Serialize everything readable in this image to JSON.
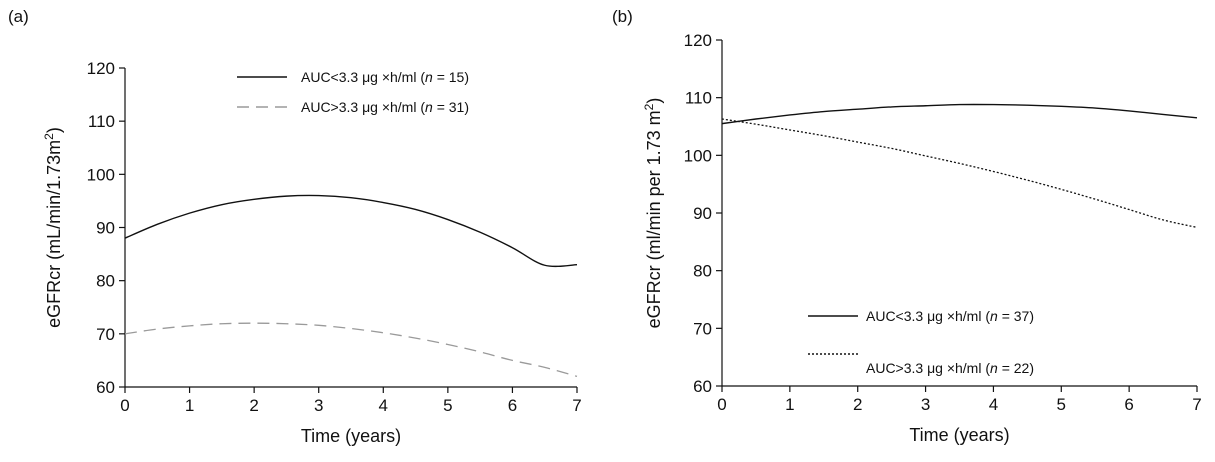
{
  "chart_data": [
    {
      "panel_label": "(a)",
      "type": "line",
      "xlabel": "Time (years)",
      "ylabel_main": "eGFRcr (mL/min/1.73m",
      "ylabel_sup": "2",
      "ylabel_end": ")",
      "xlim": [
        0,
        7
      ],
      "ylim": [
        60,
        120
      ],
      "x_ticks": [
        "0",
        "1",
        "2",
        "3",
        "4",
        "5",
        "6",
        "7"
      ],
      "y_ticks": [
        "60",
        "70",
        "80",
        "90",
        "100",
        "110",
        "120"
      ],
      "grid": false,
      "legend_position": "top-right",
      "series": [
        {
          "name": "AUC<3.3 μg ×h/ml (n = 15)",
          "legend_pre": "AUC<3.3 μg ×h/ml (",
          "legend_n": "n",
          "legend_post": " = 15)",
          "style": "solid",
          "color": "#111111",
          "x": [
            0,
            0.5,
            1,
            1.5,
            2,
            2.5,
            3,
            3.5,
            4,
            4.5,
            5,
            5.5,
            6,
            6.5,
            7
          ],
          "y": [
            88,
            90.6,
            92.7,
            94.3,
            95.3,
            95.9,
            96,
            95.6,
            94.7,
            93.4,
            91.5,
            89.1,
            86.2,
            82.9,
            83
          ]
        },
        {
          "name": "AUC>3.3 μg ×h/ml (n = 31)",
          "legend_pre": "AUC>3.3 μg ×h/ml (",
          "legend_n": "n",
          "legend_post": " = 31)",
          "style": "dashed",
          "color": "#9a9a9a",
          "x": [
            0,
            0.5,
            1,
            1.5,
            2,
            2.5,
            3,
            3.5,
            4,
            4.5,
            5,
            5.5,
            6,
            6.5,
            7
          ],
          "y": [
            70,
            70.9,
            71.5,
            71.9,
            72,
            71.9,
            71.6,
            71,
            70.2,
            69.2,
            68,
            66.6,
            65,
            63.7,
            62
          ]
        }
      ]
    },
    {
      "panel_label": "(b)",
      "type": "line",
      "xlabel": "Time (years)",
      "ylabel_main": "eGFRcr (ml/min per 1.73 m",
      "ylabel_sup": "2",
      "ylabel_end": ")",
      "xlim": [
        0,
        7
      ],
      "ylim": [
        60,
        120
      ],
      "x_ticks": [
        "0",
        "1",
        "2",
        "3",
        "4",
        "5",
        "6",
        "7"
      ],
      "y_ticks": [
        "60",
        "70",
        "80",
        "90",
        "100",
        "110",
        "120"
      ],
      "grid": false,
      "legend_position": "bottom-left",
      "series": [
        {
          "name": "AUC<3.3 μg ×h/ml (n = 37)",
          "legend_pre": "AUC<3.3 μg ×h/ml (",
          "legend_n": "n",
          "legend_post": " = 37)",
          "style": "solid",
          "color": "#111111",
          "x": [
            0,
            0.5,
            1,
            1.5,
            2,
            2.5,
            3,
            3.5,
            4,
            4.5,
            5,
            5.5,
            6,
            6.5,
            7
          ],
          "y": [
            105.5,
            106.3,
            107,
            107.6,
            108,
            108.4,
            108.6,
            108.8,
            108.8,
            108.7,
            108.5,
            108.2,
            107.7,
            107.1,
            106.5
          ]
        },
        {
          "name": "AUC>3.3 μg ×h/ml (n = 22)",
          "legend_pre": "AUC>3.3 μg ×h/ml (",
          "legend_n": "n",
          "legend_post": " = 22)",
          "style": "dotted",
          "color": "#111111",
          "x": [
            0,
            0.5,
            1,
            1.5,
            2,
            2.5,
            3,
            3.5,
            4,
            4.5,
            5,
            5.5,
            6,
            6.5,
            7
          ],
          "y": [
            106.3,
            105.4,
            104.4,
            103.4,
            102.3,
            101.2,
            99.9,
            98.6,
            97.2,
            95.7,
            94.1,
            92.4,
            90.6,
            88.8,
            87.5
          ]
        }
      ]
    }
  ]
}
